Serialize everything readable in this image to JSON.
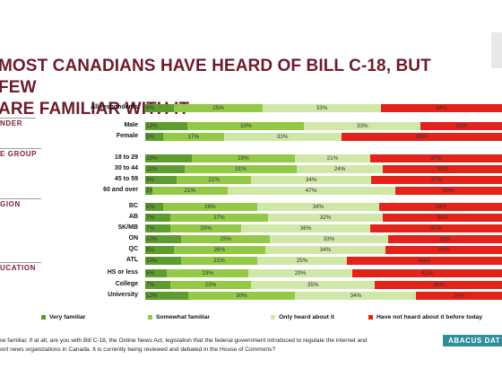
{
  "title": "MOST CANADIANS HAVE HEARD OF BILL C-18, BUT FEW\nARE FAMILIAR WITH IT",
  "colors": {
    "very_familiar": "#5e9c2f",
    "somewhat_familiar": "#93c947",
    "only_heard": "#cfe8a8",
    "not_heard": "#e32219",
    "title": "#6d1b2b"
  },
  "legend": [
    {
      "label": "Very familiar",
      "color": "#5e9c2f"
    },
    {
      "label": "Somewhat familiar",
      "color": "#93c947"
    },
    {
      "label": "Only heard about it",
      "color": "#cfe8a8"
    },
    {
      "label": "Have not heard about it before today",
      "color": "#e32219"
    }
  ],
  "footnote": "ew familiar, if at all, are you with Bill C-18, the Online News Act, legislation that the federal government introduced to regulate the internet and\nport news organizations in Canada. It is currently being reviewed and debated in the House of Commons?",
  "brand": "ABACUS DAT",
  "chart_data": {
    "type": "bar",
    "orientation": "horizontal",
    "stacked": true,
    "unit": "%",
    "series_names": [
      "Very familiar",
      "Somewhat familiar",
      "Only heard about it",
      "Have not heard about it before today"
    ],
    "groups": [
      {
        "label": "",
        "rows": [
          {
            "label": "All respondents",
            "values": [
              8,
              25,
              33,
              34
            ]
          }
        ]
      },
      {
        "label": "NDER",
        "rows": [
          {
            "label": "Male",
            "values": [
              12,
              33,
              33,
              23
            ]
          },
          {
            "label": "Female",
            "values": [
              5,
              17,
              33,
              45
            ]
          }
        ]
      },
      {
        "label": "E GROUP",
        "rows": [
          {
            "label": "18 to 29",
            "values": [
              13,
              29,
              21,
              37
            ]
          },
          {
            "label": "30 to 44",
            "values": [
              11,
              31,
              24,
              33
            ]
          },
          {
            "label": "45 to 59",
            "values": [
              9,
              21,
              34,
              37
            ]
          },
          {
            "label": "60 and over",
            "values": [
              2,
              21,
              47,
              30
            ]
          }
        ]
      },
      {
        "label": "GION",
        "rows": [
          {
            "label": "BC",
            "values": [
              5,
              26,
              34,
              34
            ]
          },
          {
            "label": "AB",
            "values": [
              7,
              27,
              32,
              33
            ]
          },
          {
            "label": "SK/MB",
            "values": [
              7,
              20,
              36,
              37
            ]
          },
          {
            "label": "ON",
            "values": [
              10,
              25,
              33,
              32
            ]
          },
          {
            "label": "QC",
            "values": [
              8,
              26,
              34,
              33
            ]
          },
          {
            "label": "ATL",
            "values": [
              10,
              21,
              25,
              43
            ]
          }
        ]
      },
      {
        "label": "UCATION",
        "rows": [
          {
            "label": "HS or less",
            "values": [
              6,
              23,
              29,
              42
            ]
          },
          {
            "label": "College",
            "values": [
              7,
              23,
              35,
              36
            ]
          },
          {
            "label": "University",
            "values": [
              12,
              30,
              34,
              24
            ]
          }
        ]
      }
    ]
  }
}
